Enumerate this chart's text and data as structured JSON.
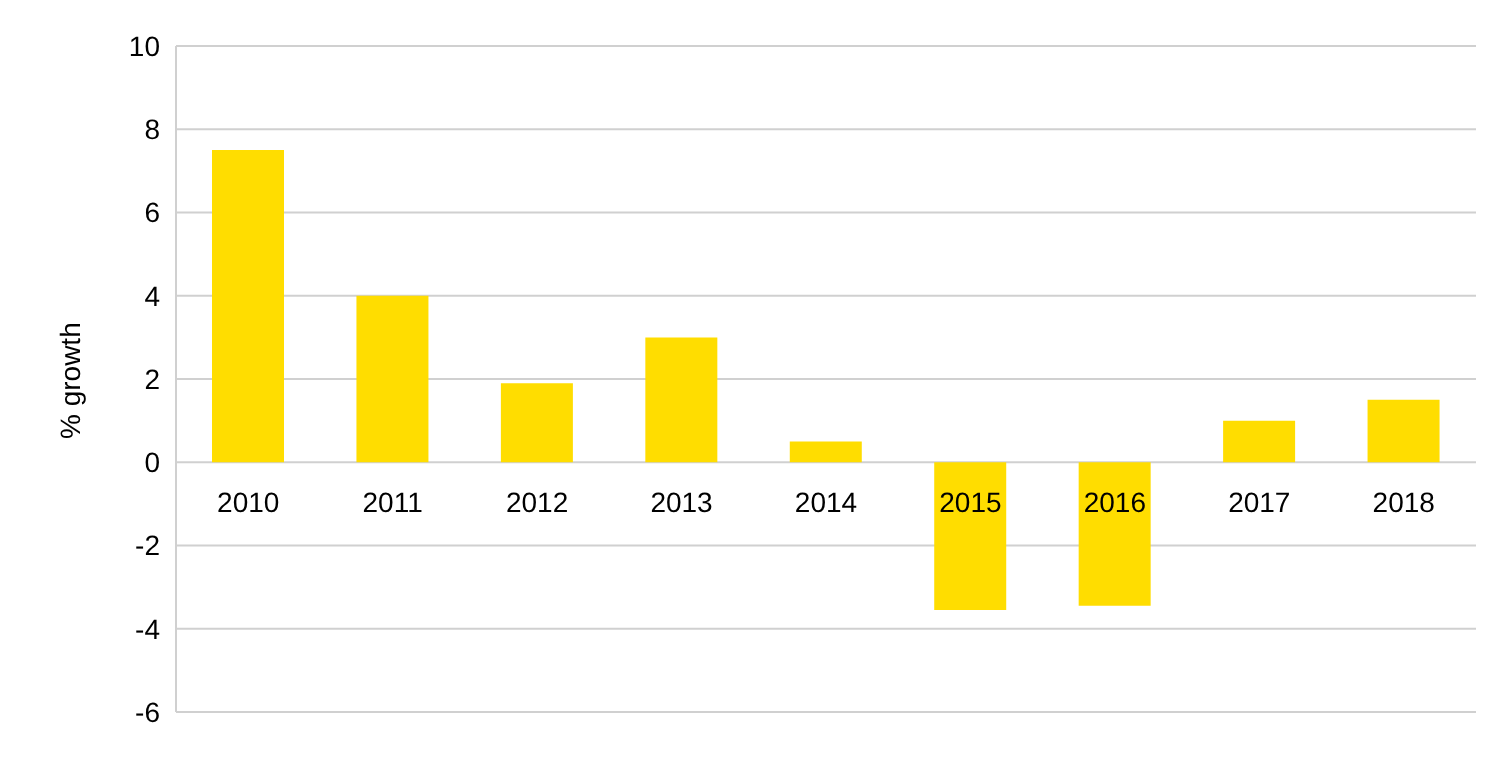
{
  "chart_data": {
    "type": "bar",
    "ylabel": "% growth",
    "categories": [
      "2010",
      "2011",
      "2012",
      "2013",
      "2014",
      "2015",
      "2016",
      "2017",
      "2018"
    ],
    "values": [
      7.5,
      4.0,
      1.9,
      3.0,
      0.5,
      -3.55,
      -3.45,
      1.0,
      1.5
    ],
    "color": "#ffdd00",
    "ylim": [
      -6,
      10
    ],
    "yticks": [
      -6,
      -4,
      -2,
      0,
      2,
      4,
      6,
      8,
      10
    ],
    "grid": "y"
  }
}
